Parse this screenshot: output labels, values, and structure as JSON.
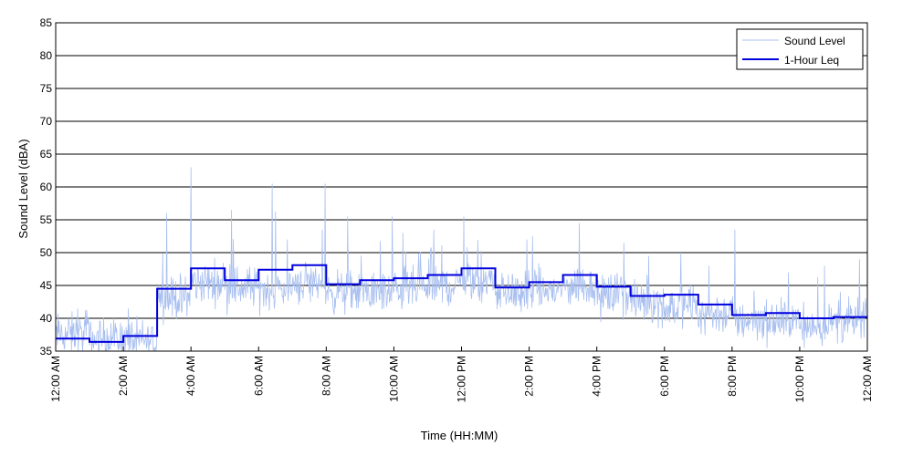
{
  "chart_data": {
    "type": "line",
    "xlabel": "Time (HH:MM)",
    "ylabel": "Sound Level (dBA)",
    "xlim": [
      0,
      24
    ],
    "ylim": [
      35,
      85
    ],
    "yticks": [
      35,
      40,
      45,
      50,
      55,
      60,
      65,
      70,
      75,
      80,
      85
    ],
    "xticks": [
      {
        "value": 0,
        "label": "12:00 AM"
      },
      {
        "value": 2,
        "label": "2:00 AM"
      },
      {
        "value": 4,
        "label": "4:00 AM"
      },
      {
        "value": 6,
        "label": "6:00 AM"
      },
      {
        "value": 8,
        "label": "8:00 AM"
      },
      {
        "value": 10,
        "label": "10:00 AM"
      },
      {
        "value": 12,
        "label": "12:00 PM"
      },
      {
        "value": 14,
        "label": "2:00 PM"
      },
      {
        "value": 16,
        "label": "4:00 PM"
      },
      {
        "value": 18,
        "label": "6:00 PM"
      },
      {
        "value": 20,
        "label": "8:00 PM"
      },
      {
        "value": 22,
        "label": "10:00 PM"
      },
      {
        "value": 24,
        "label": "12:00 AM"
      }
    ],
    "grid": "horizontal",
    "legend_position": "top-right",
    "series": [
      {
        "name": "Sound Level",
        "color": "#a8bff0",
        "style": "thin-line",
        "hourly_mean": [
          37.5,
          36.8,
          36.5,
          43.0,
          45.5,
          44.8,
          44.5,
          45.5,
          44.0,
          44.0,
          44.5,
          45.0,
          45.8,
          43.8,
          44.2,
          45.0,
          43.5,
          42.5,
          41.8,
          40.8,
          39.8,
          39.5,
          39.0,
          39.5
        ],
        "hourly_max": [
          41.5,
          38.5,
          41.5,
          56.0,
          63.0,
          56.5,
          60.5,
          60.5,
          55.5,
          55.5,
          53.0,
          53.5,
          55.5,
          52.0,
          52.5,
          54.5,
          51.5,
          49.5,
          50.0,
          48.0,
          53.5,
          47.0,
          48.0,
          49.0
        ]
      },
      {
        "name": "1-Hour Leq",
        "color": "#0000dd",
        "style": "step",
        "values": [
          36.9,
          36.4,
          37.3,
          44.5,
          47.6,
          45.8,
          47.4,
          48.1,
          45.2,
          45.8,
          46.1,
          46.6,
          47.6,
          44.7,
          45.5,
          46.6,
          44.8,
          43.4,
          43.6,
          42.1,
          40.5,
          40.8,
          40.0,
          40.2
        ]
      }
    ]
  }
}
